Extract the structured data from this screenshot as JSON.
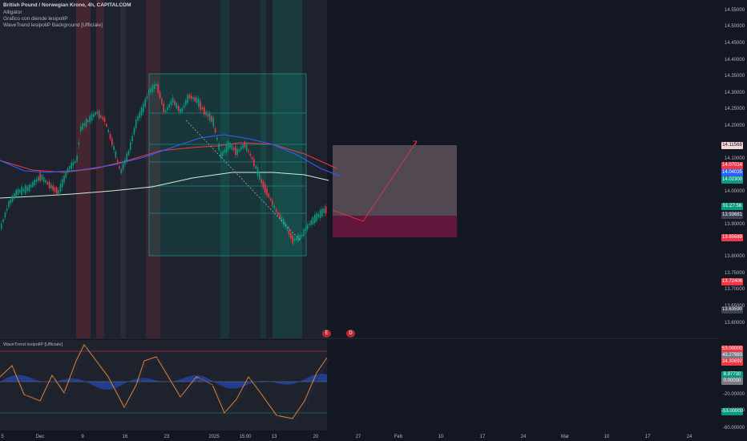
{
  "header": {
    "title": "British Pound / Norwegian Krone, 4h, CAPITALCOM",
    "indicators": [
      "Alligator",
      "Grafico con diende lesipoliP",
      "WaveTrend lesipoliP Background [Ufficiale]"
    ]
  },
  "osc_header": {
    "title": "WaveTrend lesipoliP [Ufficiale]"
  },
  "price_axis": {
    "labels": [
      "14.55000",
      "14.50000",
      "14.45000",
      "14.40000",
      "14.35000",
      "14.30000",
      "14.25000",
      "14.20000",
      "14.10000",
      "14.00000",
      "13.90000",
      "13.80000",
      "13.75000",
      "13.70000",
      "13.65000",
      "13.60000"
    ]
  },
  "price_tags": [
    {
      "text": "14.11568",
      "bg": "#f5d5d8",
      "color": "#131722"
    },
    {
      "text": "14.07014",
      "bg": "#f23645",
      "color": "#ffffff"
    },
    {
      "text": "14.04035",
      "bg": "#2962ff",
      "color": "#ffffff"
    },
    {
      "text": "14.02300",
      "bg": "#089981",
      "color": "#ffffff"
    },
    {
      "text": "01:27:56",
      "bg": "#089981",
      "color": "#ffffff"
    },
    {
      "text": "13.93681",
      "bg": "#3b4150",
      "color": "#ffffff"
    },
    {
      "text": "13.85689",
      "bg": "#f23645",
      "color": "#ffffff"
    },
    {
      "text": "13.72406",
      "bg": "#f23645",
      "color": "#ffffff"
    },
    {
      "text": "13.63590",
      "bg": "#3b4150",
      "color": "#ffffff"
    }
  ],
  "osc_axis": {
    "labels": [
      "20.00000",
      "-20.00000",
      "-40.00000",
      "-60.00000"
    ]
  },
  "osc_tags": [
    {
      "text": "53.00000",
      "bg": "#f23645",
      "color": "#ffffff"
    },
    {
      "text": "43.27983",
      "bg": "#787b86",
      "color": "#ffffff"
    },
    {
      "text": "34.30692",
      "bg": "#f23645",
      "color": "#ffffff"
    },
    {
      "text": "8.97730",
      "bg": "#089981",
      "color": "#ffffff"
    },
    {
      "text": "0.00000",
      "bg": "#787b86",
      "color": "#ffffff"
    },
    {
      "text": "-53.00000",
      "bg": "#089981",
      "color": "#ffffff"
    }
  ],
  "time_axis": {
    "labels": [
      "5",
      "Dec",
      "9",
      "16",
      "23",
      "2025",
      "15:00",
      "13",
      "20",
      "27",
      "Feb",
      "10",
      "17",
      "24",
      "Mar",
      "10",
      "17",
      "24"
    ]
  },
  "event_markers": [
    "E",
    "D"
  ],
  "colors": {
    "background": "#131722",
    "up": "#089981",
    "down": "#f23645",
    "sma_red": "#f23645",
    "sma_blue": "#2962ff",
    "sma_white": "#d1f0d4"
  }
}
